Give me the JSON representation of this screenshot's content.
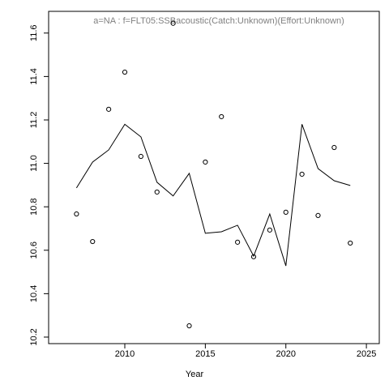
{
  "chart_data": {
    "type": "scatter",
    "title": "a=NA  :  f=FLT05:SSBacoustic(Catch:Unknown)(Effort:Unknown)",
    "x_label": "Year",
    "x": [
      2007,
      2008,
      2009,
      2010,
      2011,
      2012,
      2013,
      2014,
      2015,
      2016,
      2017,
      2018,
      2019,
      2020,
      2021,
      2022,
      2023,
      2024
    ],
    "series": [
      {
        "mode": "points",
        "color": "#000000",
        "values": [
          10.767,
          10.64,
          11.249,
          11.42,
          11.032,
          10.868,
          11.645,
          10.252,
          11.006,
          11.215,
          10.637,
          10.57,
          10.693,
          10.775,
          10.95,
          10.76,
          11.073,
          10.633
        ]
      },
      {
        "mode": "line",
        "color": "#000000",
        "values": [
          10.887,
          11.006,
          11.062,
          11.18,
          11.122,
          10.913,
          10.85,
          10.954,
          10.678,
          10.685,
          10.715,
          10.573,
          10.767,
          10.528,
          11.18,
          10.976,
          10.92,
          10.898
        ]
      }
    ],
    "xlim": [
      2005.27,
      2025.8
    ],
    "xticks": [
      2010,
      2015,
      2020,
      2025
    ],
    "ylim": [
      10.17,
      11.7
    ],
    "yticks": [
      10.2,
      10.4,
      10.6,
      10.8,
      {
        "value": 11.0,
        "label": "11.0"
      },
      11.2,
      11.4,
      11.6
    ],
    "grid": false
  }
}
